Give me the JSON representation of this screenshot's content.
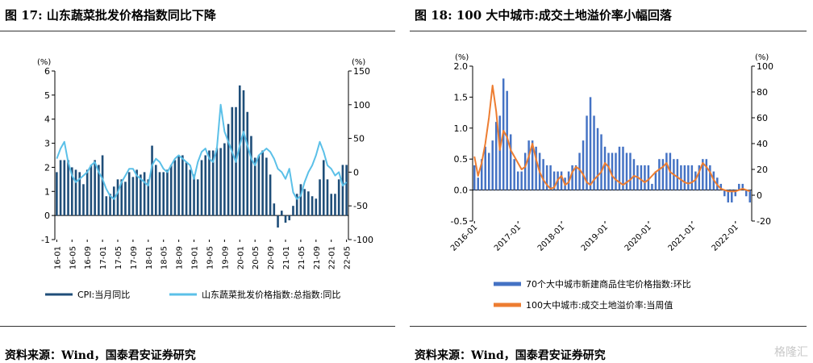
{
  "left": {
    "title": "图 17:  山东蔬菜批发价格指数同比下降",
    "source": "资料来源：Wind，国泰君安证券研究",
    "chart_data": {
      "type": "bar",
      "left_unit": "(%)",
      "right_unit": "(%)",
      "ylim_left": [
        -1,
        6
      ],
      "ylim_right": [
        -100,
        150
      ],
      "yticks_left": [
        -1,
        0,
        1,
        2,
        3,
        4,
        5,
        6
      ],
      "yticks_right": [
        -100,
        -50,
        0,
        50,
        100,
        150
      ],
      "x_tick_labels": [
        "16-01",
        "16-05",
        "16-09",
        "17-01",
        "17-05",
        "17-09",
        "18-01",
        "18-05",
        "18-09",
        "19-01",
        "19-05",
        "19-09",
        "20-01",
        "20-05",
        "20-09",
        "21-01",
        "21-05",
        "21-09",
        "22-01",
        "22-05"
      ],
      "months": [
        "16-01",
        "16-02",
        "16-03",
        "16-04",
        "16-05",
        "16-06",
        "16-07",
        "16-08",
        "16-09",
        "16-10",
        "16-11",
        "16-12",
        "17-01",
        "17-02",
        "17-03",
        "17-04",
        "17-05",
        "17-06",
        "17-07",
        "17-08",
        "17-09",
        "17-10",
        "17-11",
        "17-12",
        "18-01",
        "18-02",
        "18-03",
        "18-04",
        "18-05",
        "18-06",
        "18-07",
        "18-08",
        "18-09",
        "18-10",
        "18-11",
        "18-12",
        "19-01",
        "19-02",
        "19-03",
        "19-04",
        "19-05",
        "19-06",
        "19-07",
        "19-08",
        "19-09",
        "19-10",
        "19-11",
        "19-12",
        "20-01",
        "20-02",
        "20-03",
        "20-04",
        "20-05",
        "20-06",
        "20-07",
        "20-08",
        "20-09",
        "20-10",
        "20-11",
        "20-12",
        "21-01",
        "21-02",
        "21-03",
        "21-04",
        "21-05",
        "21-06",
        "21-07",
        "21-08",
        "21-09",
        "21-10",
        "21-11",
        "21-12",
        "22-01",
        "22-02",
        "22-03",
        "22-04",
        "22-05"
      ],
      "series": [
        {
          "name": "CPI:当月同比",
          "axis": "left",
          "type": "bar",
          "color": "#1f4e79",
          "values": [
            1.8,
            2.3,
            2.3,
            2.3,
            2.0,
            1.9,
            1.8,
            1.3,
            1.9,
            2.1,
            2.3,
            2.1,
            2.5,
            0.8,
            0.9,
            1.2,
            1.5,
            1.5,
            1.4,
            1.8,
            1.6,
            1.9,
            1.7,
            1.8,
            1.5,
            2.9,
            2.1,
            1.8,
            1.8,
            1.9,
            2.1,
            2.3,
            2.5,
            2.5,
            2.2,
            1.9,
            1.7,
            1.5,
            2.3,
            2.5,
            2.7,
            2.7,
            2.8,
            2.8,
            3.0,
            3.8,
            4.5,
            4.5,
            5.4,
            5.2,
            4.3,
            3.3,
            2.4,
            2.5,
            2.7,
            2.4,
            1.7,
            0.5,
            -0.5,
            0.2,
            -0.3,
            -0.2,
            0.4,
            0.9,
            1.3,
            1.1,
            1.0,
            0.8,
            0.7,
            1.5,
            2.3,
            1.5,
            0.9,
            0.9,
            1.5,
            2.1,
            2.1
          ]
        },
        {
          "name": "山东蔬菜批发价格指数:总指数:同比",
          "axis": "right",
          "type": "line",
          "color": "#5bc0e8",
          "values": [
            20,
            35,
            45,
            15,
            -5,
            -15,
            -10,
            -5,
            0,
            10,
            15,
            0,
            -10,
            -25,
            -35,
            -40,
            -30,
            -15,
            -5,
            5,
            5,
            -5,
            -10,
            -15,
            -20,
            10,
            20,
            15,
            5,
            0,
            10,
            20,
            25,
            20,
            15,
            10,
            -10,
            15,
            30,
            35,
            20,
            15,
            35,
            100,
            60,
            45,
            30,
            15,
            40,
            60,
            40,
            20,
            10,
            25,
            30,
            35,
            30,
            20,
            5,
            0,
            -10,
            5,
            -30,
            -40,
            -35,
            -15,
            0,
            10,
            25,
            45,
            30,
            10,
            5,
            -5,
            0,
            -20,
            -15
          ]
        }
      ]
    },
    "legend": [
      {
        "label": "CPI:当月同比",
        "color": "#1f4e79"
      },
      {
        "label": "山东蔬菜批发价格指数:总指数:同比",
        "color": "#5bc0e8"
      }
    ]
  },
  "right": {
    "title": "图 18: 100 大中城市:成交土地溢价率小幅回落",
    "source": "资料来源：Wind，国泰君安证券研究",
    "chart_data": {
      "type": "bar",
      "left_unit": "(%)",
      "right_unit": "(%)",
      "ylim_left": [
        -0.5,
        2.0
      ],
      "ylim_right": [
        -20,
        100
      ],
      "yticks_left": [
        "-0.5",
        "0.0",
        "0.5",
        "1.0",
        "1.5",
        "2.0"
      ],
      "yticks_right": [
        -20,
        0,
        20,
        40,
        60,
        80,
        100
      ],
      "x_tick_labels": [
        "2016-01",
        "2017-01",
        "2018-01",
        "2019-01",
        "2020-01",
        "2021-01",
        "2022-01"
      ],
      "months": [
        "2016-01",
        "2016-02",
        "2016-03",
        "2016-04",
        "2016-05",
        "2016-06",
        "2016-07",
        "2016-08",
        "2016-09",
        "2016-10",
        "2016-11",
        "2016-12",
        "2017-01",
        "2017-02",
        "2017-03",
        "2017-04",
        "2017-05",
        "2017-06",
        "2017-07",
        "2017-08",
        "2017-09",
        "2017-10",
        "2017-11",
        "2017-12",
        "2018-01",
        "2018-02",
        "2018-03",
        "2018-04",
        "2018-05",
        "2018-06",
        "2018-07",
        "2018-08",
        "2018-09",
        "2018-10",
        "2018-11",
        "2018-12",
        "2019-01",
        "2019-02",
        "2019-03",
        "2019-04",
        "2019-05",
        "2019-06",
        "2019-07",
        "2019-08",
        "2019-09",
        "2019-10",
        "2019-11",
        "2019-12",
        "2020-01",
        "2020-02",
        "2020-03",
        "2020-04",
        "2020-05",
        "2020-06",
        "2020-07",
        "2020-08",
        "2020-09",
        "2020-10",
        "2020-11",
        "2020-12",
        "2021-01",
        "2021-02",
        "2021-03",
        "2021-04",
        "2021-05",
        "2021-06",
        "2021-07",
        "2021-08",
        "2021-09",
        "2021-10",
        "2021-11",
        "2021-12",
        "2022-01",
        "2022-02",
        "2022-03",
        "2022-04",
        "2022-05"
      ],
      "series": [
        {
          "name": "70个大中城市新建商品住宅价格指数:环比",
          "axis": "left",
          "type": "bar",
          "color": "#4472c4",
          "values": [
            0.4,
            0.2,
            0.5,
            0.7,
            0.6,
            0.8,
            1.1,
            1.2,
            1.8,
            1.6,
            0.9,
            0.5,
            0.3,
            0.3,
            0.6,
            0.8,
            0.8,
            0.7,
            0.6,
            0.5,
            0.4,
            0.4,
            0.3,
            0.3,
            0.3,
            0.2,
            0.3,
            0.4,
            0.4,
            0.6,
            0.8,
            1.2,
            1.5,
            1.2,
            1.0,
            0.9,
            0.7,
            0.6,
            0.6,
            0.6,
            0.7,
            0.7,
            0.6,
            0.6,
            0.5,
            0.4,
            0.4,
            0.4,
            0.4,
            0.1,
            0.3,
            0.5,
            0.5,
            0.6,
            0.6,
            0.5,
            0.5,
            0.4,
            0.4,
            0.4,
            0.4,
            0.3,
            0.4,
            0.5,
            0.5,
            0.4,
            0.3,
            0.2,
            0.1,
            -0.1,
            -0.2,
            -0.2,
            -0.1,
            0.1,
            0.1,
            -0.1,
            -0.2
          ]
        },
        {
          "name": "100大中城市:成交土地溢价率:当周值",
          "axis": "right",
          "type": "line",
          "color": "#ed7d31",
          "values": [
            30,
            15,
            25,
            40,
            60,
            85,
            65,
            35,
            50,
            45,
            35,
            30,
            25,
            20,
            22,
            30,
            40,
            28,
            18,
            12,
            8,
            5,
            6,
            12,
            15,
            8,
            10,
            18,
            22,
            20,
            16,
            10,
            8,
            12,
            15,
            18,
            25,
            22,
            15,
            12,
            10,
            8,
            10,
            12,
            15,
            14,
            12,
            10,
            12,
            15,
            18,
            20,
            22,
            25,
            18,
            16,
            14,
            12,
            10,
            9,
            10,
            12,
            18,
            25,
            22,
            18,
            12,
            8,
            5,
            4,
            3,
            3,
            3,
            4,
            5,
            4,
            3
          ]
        }
      ]
    },
    "legend": [
      {
        "label": "70个大中城市新建商品住宅价格指数:环比",
        "color": "#4472c4"
      },
      {
        "label": "100大中城市:成交土地溢价率:当周值",
        "color": "#ed7d31"
      }
    ]
  },
  "watermark": "格隆汇"
}
